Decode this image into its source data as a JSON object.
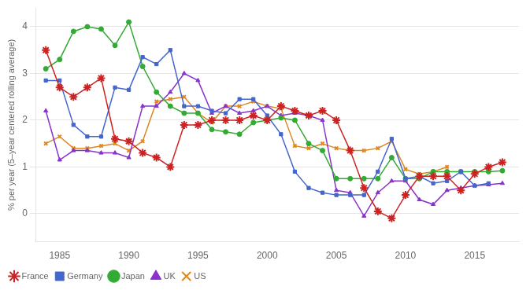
{
  "chart_data": {
    "type": "line",
    "y_label": "% per year (5–year centered rolling average)",
    "x": [
      1984,
      1985,
      1986,
      1987,
      1988,
      1989,
      1990,
      1991,
      1992,
      1993,
      1994,
      1995,
      1996,
      1997,
      1998,
      1999,
      2000,
      2001,
      2002,
      2003,
      2004,
      2005,
      2006,
      2007,
      2008,
      2009,
      2010,
      2011,
      2012,
      2013,
      2014,
      2015,
      2016,
      2017
    ],
    "series": [
      {
        "name": "France",
        "color": "#cc2222",
        "marker": "star",
        "values": [
          3.5,
          2.7,
          2.5,
          2.7,
          2.9,
          1.6,
          1.55,
          1.3,
          1.2,
          1.0,
          1.9,
          1.9,
          2.0,
          2.0,
          2.0,
          2.1,
          2.0,
          2.3,
          2.2,
          2.1,
          2.2,
          2.0,
          1.35,
          0.55,
          0.05,
          -0.1,
          0.4,
          0.8,
          0.8,
          0.8,
          0.5,
          0.85,
          1.0,
          1.1
        ]
      },
      {
        "name": "Germany",
        "color": "#4466cc",
        "marker": "square",
        "values": [
          2.85,
          2.85,
          1.9,
          1.65,
          1.65,
          2.7,
          2.65,
          3.35,
          3.2,
          3.5,
          2.3,
          2.3,
          2.2,
          2.15,
          2.45,
          2.45,
          2.1,
          1.7,
          0.9,
          0.55,
          0.45,
          0.4,
          0.4,
          0.4,
          0.9,
          1.6,
          0.75,
          0.8,
          0.65,
          0.7,
          0.9,
          0.6,
          0.65,
          null
        ]
      },
      {
        "name": "Japan",
        "color": "#33aa33",
        "marker": "circle",
        "values": [
          3.1,
          3.3,
          3.9,
          4.0,
          3.95,
          3.6,
          4.1,
          3.15,
          2.6,
          2.3,
          2.15,
          2.15,
          1.8,
          1.75,
          1.7,
          1.95,
          2.0,
          2.05,
          2.0,
          1.5,
          1.35,
          0.75,
          0.75,
          0.75,
          0.75,
          1.2,
          0.75,
          0.75,
          0.9,
          0.9,
          0.9,
          0.9,
          0.9,
          0.92
        ]
      },
      {
        "name": "UK",
        "color": "#8833cc",
        "marker": "triangle",
        "values": [
          2.2,
          1.15,
          1.35,
          1.35,
          1.3,
          1.3,
          1.2,
          2.3,
          2.3,
          2.6,
          3.0,
          2.85,
          2.15,
          2.3,
          2.15,
          2.2,
          2.3,
          2.1,
          2.15,
          2.1,
          2.0,
          0.5,
          0.45,
          -0.05,
          0.45,
          0.7,
          0.7,
          0.3,
          0.2,
          0.5,
          0.55,
          0.6,
          0.62,
          0.65
        ]
      },
      {
        "name": "US",
        "color": "#dd8822",
        "marker": "plus",
        "values": [
          1.5,
          1.65,
          1.4,
          1.4,
          1.45,
          1.5,
          1.35,
          1.55,
          2.4,
          2.45,
          2.5,
          2.15,
          1.95,
          2.3,
          2.3,
          2.4,
          2.3,
          2.25,
          1.45,
          1.4,
          1.5,
          1.4,
          1.35,
          1.35,
          1.4,
          1.55,
          0.95,
          0.85,
          0.9,
          1.0,
          null,
          null,
          null,
          null
        ]
      }
    ],
    "xlim": [
      1983.3,
      2018.2
    ],
    "xticks": [
      1985,
      1990,
      1995,
      2000,
      2005,
      2010,
      2015
    ],
    "ylim": [
      -0.6,
      4.4
    ],
    "yticks": [
      0,
      1,
      2,
      3,
      4
    ],
    "grid": "y",
    "legend": "lower left"
  }
}
